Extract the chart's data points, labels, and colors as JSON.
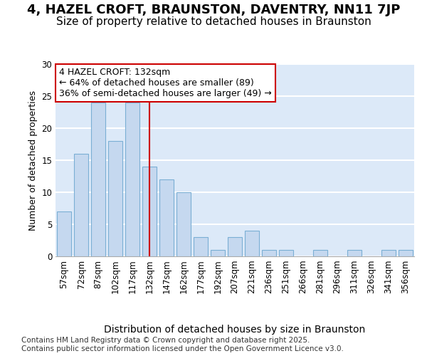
{
  "title1": "4, HAZEL CROFT, BRAUNSTON, DAVENTRY, NN11 7JP",
  "title2": "Size of property relative to detached houses in Braunston",
  "xlabel": "Distribution of detached houses by size in Braunston",
  "ylabel": "Number of detached properties",
  "categories": [
    "57sqm",
    "72sqm",
    "87sqm",
    "102sqm",
    "117sqm",
    "132sqm",
    "147sqm",
    "162sqm",
    "177sqm",
    "192sqm",
    "207sqm",
    "221sqm",
    "236sqm",
    "251sqm",
    "266sqm",
    "281sqm",
    "296sqm",
    "311sqm",
    "326sqm",
    "341sqm",
    "356sqm"
  ],
  "values": [
    7,
    16,
    24,
    18,
    24,
    14,
    12,
    10,
    3,
    1,
    3,
    4,
    1,
    1,
    0,
    1,
    0,
    1,
    0,
    1,
    1
  ],
  "bar_color": "#c5d8ef",
  "bar_edge_color": "#7bafd4",
  "vline_x_index": 5,
  "vline_color": "#cc0000",
  "annotation_line1": "4 HAZEL CROFT: 132sqm",
  "annotation_line2": "← 64% of detached houses are smaller (89)",
  "annotation_line3": "36% of semi-detached houses are larger (49) →",
  "annotation_box_facecolor": "#ffffff",
  "annotation_box_edgecolor": "#cc0000",
  "ylim": [
    0,
    30
  ],
  "yticks": [
    0,
    5,
    10,
    15,
    20,
    25,
    30
  ],
  "plot_bg_color": "#dce9f8",
  "grid_color": "#ffffff",
  "fig_bg_color": "#ffffff",
  "footer_text": "Contains HM Land Registry data © Crown copyright and database right 2025.\nContains public sector information licensed under the Open Government Licence v3.0.",
  "title1_fontsize": 13,
  "title2_fontsize": 11,
  "xlabel_fontsize": 10,
  "ylabel_fontsize": 9,
  "tick_fontsize": 8.5,
  "annotation_fontsize": 9,
  "footer_fontsize": 7.5
}
